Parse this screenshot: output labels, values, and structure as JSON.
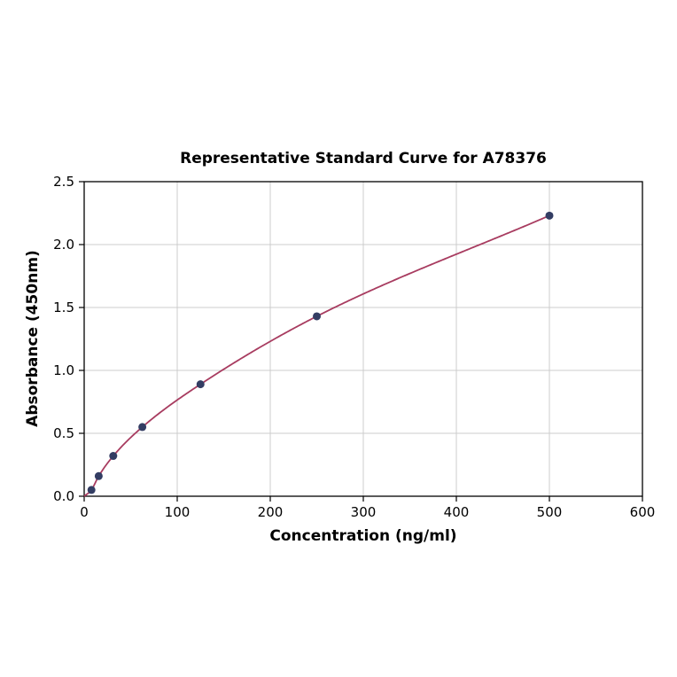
{
  "chart": {
    "title": "Representative Standard Curve for A78376",
    "xlabel": "Concentration (ng/ml)",
    "ylabel": "Absorbance (450nm)"
  },
  "chart_data": {
    "type": "scatter",
    "title": "Representative Standard Curve for A78376",
    "xlabel": "Concentration (ng/ml)",
    "ylabel": "Absorbance (450nm)",
    "x": [
      7.8,
      15.6,
      31.25,
      62.5,
      125,
      250,
      500
    ],
    "y": [
      0.05,
      0.16,
      0.32,
      0.55,
      0.89,
      1.43,
      2.23
    ],
    "curve_start": [
      0,
      0.0
    ],
    "xlim": [
      0,
      600
    ],
    "ylim": [
      0,
      2.5
    ],
    "xticks": [
      0,
      100,
      200,
      300,
      400,
      500,
      600
    ],
    "xtick_labels": [
      "0",
      "100",
      "200",
      "300",
      "400",
      "500",
      "600"
    ],
    "yticks": [
      0.0,
      0.5,
      1.0,
      1.5,
      2.0,
      2.5
    ],
    "ytick_labels": [
      "0.0",
      "0.5",
      "1.0",
      "1.5",
      "2.0",
      "2.5"
    ],
    "grid": true,
    "legend_position": "none",
    "colors": {
      "curve": "#a83c60",
      "points": "#333d63",
      "grid": "#cccccc",
      "axis": "#000000",
      "background": "#ffffff"
    }
  }
}
